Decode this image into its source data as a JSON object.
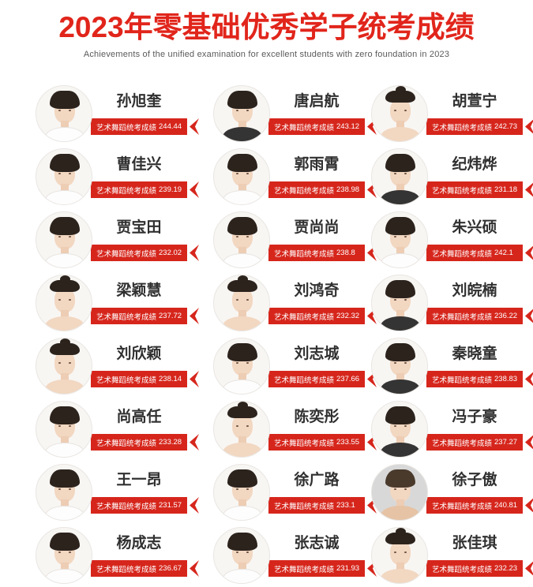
{
  "header": {
    "title": "2023年零基础优秀学子统考成绩",
    "subtitle": "Achievements of the unified examination for excellent students with zero foundation in 2023",
    "title_color": "#e1251b"
  },
  "score_label": "艺术舞蹈统考成绩",
  "colors": {
    "ribbon_red": "#d6261c",
    "title_red": "#e1251b",
    "name_text": "#303030",
    "subtitle_text": "#5a5a5a",
    "photo_ring": "#e9e6e3",
    "gray_photo_bg": "#d8d8d8"
  },
  "students": [
    {
      "name": "孙旭奎",
      "score": "244.44",
      "avatar": "m1"
    },
    {
      "name": "唐启航",
      "score": "243.12",
      "avatar": "m2"
    },
    {
      "name": "胡萱宁",
      "score": "242.73",
      "avatar": "f"
    },
    {
      "name": "曹佳兴",
      "score": "239.19",
      "avatar": "m1"
    },
    {
      "name": "郭雨霄",
      "score": "238.98",
      "avatar": "m1"
    },
    {
      "name": "纪炜烨",
      "score": "231.18",
      "avatar": "m2"
    },
    {
      "name": "贾宝田",
      "score": "232.02",
      "avatar": "m1"
    },
    {
      "name": "贾尚尚",
      "score": "238.8",
      "avatar": "m1"
    },
    {
      "name": "朱兴硕",
      "score": "242.1",
      "avatar": "m1"
    },
    {
      "name": "梁颖慧",
      "score": "237.72",
      "avatar": "f"
    },
    {
      "name": "刘鸿奇",
      "score": "232.32",
      "avatar": "f"
    },
    {
      "name": "刘皖楠",
      "score": "236.22",
      "avatar": "m2"
    },
    {
      "name": "刘欣颖",
      "score": "238.14",
      "avatar": "f"
    },
    {
      "name": "刘志城",
      "score": "237.66",
      "avatar": "m1"
    },
    {
      "name": "秦晓童",
      "score": "238.83",
      "avatar": "m2"
    },
    {
      "name": "尚高任",
      "score": "233.28",
      "avatar": "m1"
    },
    {
      "name": "陈奕彤",
      "score": "233.55",
      "avatar": "f"
    },
    {
      "name": "冯子豪",
      "score": "237.27",
      "avatar": "m2"
    },
    {
      "name": "王一昂",
      "score": "231.57",
      "avatar": "m1"
    },
    {
      "name": "徐广路",
      "score": "233.1",
      "avatar": "m1"
    },
    {
      "name": "徐子傲",
      "score": "240.81",
      "avatar": "mg"
    },
    {
      "name": "杨成志",
      "score": "236.67",
      "avatar": "m1"
    },
    {
      "name": "张志诚",
      "score": "231.93",
      "avatar": "m1"
    },
    {
      "name": "张佳琪",
      "score": "232.23",
      "avatar": "f"
    }
  ]
}
